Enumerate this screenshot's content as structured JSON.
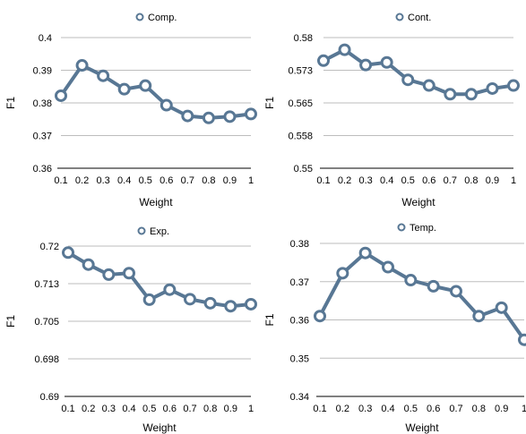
{
  "style": {
    "line_color": "#587794",
    "marker_fill": "#ffffff",
    "grid_color": "#bdbdbd",
    "axis_color": "#000000",
    "text_color": "#000000"
  },
  "chart_data": [
    {
      "type": "line",
      "legend": "Comp.",
      "legend_position": "top-center",
      "xlabel": "Weight",
      "ylabel": "F1",
      "x": [
        0.1,
        0.2,
        0.3,
        0.4,
        0.5,
        0.6,
        0.7,
        0.8,
        0.9,
        1
      ],
      "x_tick_labels": [
        "0.1",
        "0.2",
        "0.3",
        "0.4",
        "0.5",
        "0.6",
        "0.7",
        "0.8",
        "0.9",
        "1"
      ],
      "y_ticks": [
        0.36,
        0.37,
        0.38,
        0.39,
        0.4
      ],
      "y_tick_labels": [
        "0.36",
        "0.37",
        "0.38",
        "0.39",
        "0.4"
      ],
      "ylim": [
        0.36,
        0.4
      ],
      "grid": true,
      "series": [
        {
          "name": "Comp.",
          "values": [
            0.3822,
            0.3915,
            0.3883,
            0.3842,
            0.3853,
            0.3793,
            0.376,
            0.3754,
            0.3758,
            0.3766
          ]
        }
      ]
    },
    {
      "type": "line",
      "legend": "Cont.",
      "legend_position": "top-center",
      "xlabel": "Weight",
      "ylabel": "F1",
      "x": [
        0.1,
        0.2,
        0.3,
        0.4,
        0.5,
        0.6,
        0.7,
        0.8,
        0.9,
        1
      ],
      "x_tick_labels": [
        "0.1",
        "0.2",
        "0.3",
        "0.4",
        "0.5",
        "0.6",
        "0.7",
        "0.8",
        "0.9",
        "1"
      ],
      "y_ticks": [
        0.55,
        0.5575,
        0.565,
        0.5725,
        0.58
      ],
      "y_tick_labels": [
        "0.55",
        "0.558",
        "0.565",
        "0.573",
        "0.58"
      ],
      "ylim": [
        0.55,
        0.58
      ],
      "grid": true,
      "series": [
        {
          "name": "Cont.",
          "values": [
            0.5747,
            0.5772,
            0.5737,
            0.5743,
            0.5703,
            0.569,
            0.567,
            0.567,
            0.5683,
            0.569
          ]
        }
      ]
    },
    {
      "type": "line",
      "legend": "Exp.",
      "legend_position": "top-center",
      "xlabel": "Weight",
      "ylabel": "F1",
      "x": [
        0.1,
        0.2,
        0.3,
        0.4,
        0.5,
        0.6,
        0.7,
        0.8,
        0.9,
        1
      ],
      "x_tick_labels": [
        "0.1",
        "0.2",
        "0.3",
        "0.4",
        "0.5",
        "0.6",
        "0.7",
        "0.8",
        "0.9",
        "1"
      ],
      "y_ticks": [
        0.69,
        0.6975,
        0.705,
        0.7125,
        0.72
      ],
      "y_tick_labels": [
        "0.69",
        "0.698",
        "0.705",
        "0.713",
        "0.72"
      ],
      "ylim": [
        0.69,
        0.72
      ],
      "grid": true,
      "series": [
        {
          "name": "Exp.",
          "values": [
            0.7187,
            0.7163,
            0.7143,
            0.7146,
            0.7093,
            0.7113,
            0.7094,
            0.7086,
            0.708,
            0.7084
          ]
        }
      ]
    },
    {
      "type": "line",
      "legend": "Temp.",
      "legend_position": "top-center",
      "xlabel": "Weight",
      "ylabel": "F1",
      "x": [
        0.1,
        0.2,
        0.3,
        0.4,
        0.5,
        0.6,
        0.7,
        0.8,
        0.9,
        1
      ],
      "x_tick_labels": [
        "0.1",
        "0.2",
        "0.3",
        "0.4",
        "0.5",
        "0.6",
        "0.7",
        "0.8",
        "0.9",
        "1"
      ],
      "y_ticks": [
        0.34,
        0.35,
        0.36,
        0.37,
        0.38
      ],
      "y_tick_labels": [
        "0.34",
        "0.35",
        "0.36",
        "0.37",
        "0.38"
      ],
      "ylim": [
        0.34,
        0.38
      ],
      "grid": true,
      "series": [
        {
          "name": "Temp.",
          "values": [
            0.361,
            0.3722,
            0.3775,
            0.3738,
            0.3704,
            0.3688,
            0.3675,
            0.361,
            0.3632,
            0.3548
          ]
        }
      ]
    }
  ]
}
